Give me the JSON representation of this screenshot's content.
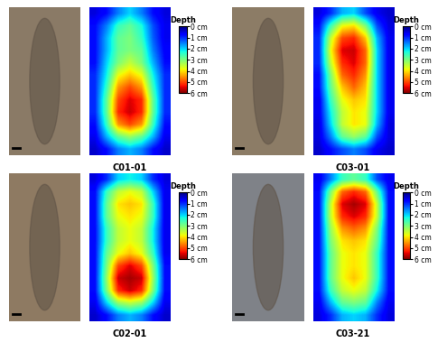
{
  "chart_data": [
    {
      "type": "heatmap",
      "title": "C01-01",
      "cells": [
        [
          0.5,
          0.8,
          1.5,
          2.0,
          1.5,
          0.8,
          0.5
        ],
        [
          0.8,
          1.5,
          2.5,
          2.8,
          2.3,
          1.2,
          0.6
        ],
        [
          0.8,
          1.8,
          2.8,
          3.0,
          2.5,
          1.3,
          0.6
        ],
        [
          0.8,
          1.8,
          2.8,
          3.0,
          2.8,
          1.5,
          0.7
        ],
        [
          0.8,
          2.0,
          3.0,
          3.5,
          3.0,
          1.8,
          0.8
        ],
        [
          1.0,
          2.2,
          3.8,
          4.2,
          3.8,
          2.2,
          1.0
        ],
        [
          1.0,
          2.5,
          4.5,
          5.0,
          4.5,
          2.5,
          1.0
        ],
        [
          1.0,
          2.8,
          5.0,
          5.5,
          5.2,
          2.8,
          1.0
        ],
        [
          1.0,
          2.8,
          5.2,
          5.6,
          5.2,
          2.8,
          1.0
        ],
        [
          0.8,
          2.5,
          4.5,
          5.0,
          4.5,
          2.5,
          0.8
        ],
        [
          0.6,
          1.8,
          2.8,
          3.2,
          2.8,
          1.8,
          0.6
        ],
        [
          0.4,
          0.8,
          1.5,
          1.8,
          1.5,
          0.8,
          0.4
        ]
      ],
      "colorbar": {
        "title": "Depth",
        "range": [
          0,
          6
        ],
        "ticks": [
          {
            "value": 0,
            "label": "0 cm"
          },
          {
            "value": 1,
            "label": "1 cm"
          },
          {
            "value": 2,
            "label": "2 cm"
          },
          {
            "value": 3,
            "label": "3 cm"
          },
          {
            "value": 4,
            "label": "4 cm"
          },
          {
            "value": 5,
            "label": "5 cm"
          },
          {
            "value": 6,
            "label": "6 cm"
          }
        ]
      }
    },
    {
      "type": "heatmap",
      "title": "C03-01",
      "cells": [
        [
          0.5,
          1.0,
          1.8,
          2.0,
          1.2,
          0.6,
          0.4
        ],
        [
          0.8,
          2.5,
          3.8,
          4.0,
          3.0,
          1.2,
          0.5
        ],
        [
          1.0,
          3.5,
          5.0,
          5.2,
          4.2,
          1.8,
          0.6
        ],
        [
          1.0,
          3.8,
          5.5,
          5.6,
          4.8,
          2.0,
          0.6
        ],
        [
          1.0,
          3.5,
          5.2,
          5.5,
          4.8,
          2.0,
          0.6
        ],
        [
          0.8,
          3.0,
          4.8,
          5.2,
          4.5,
          2.0,
          0.6
        ],
        [
          0.8,
          2.8,
          4.2,
          4.8,
          4.2,
          2.0,
          0.6
        ],
        [
          0.6,
          2.5,
          3.8,
          4.2,
          4.0,
          2.0,
          0.6
        ],
        [
          0.6,
          2.2,
          3.5,
          4.0,
          3.8,
          2.0,
          0.6
        ],
        [
          0.5,
          2.0,
          3.5,
          4.0,
          3.8,
          1.8,
          0.5
        ],
        [
          0.5,
          1.5,
          2.8,
          3.2,
          2.8,
          1.2,
          0.5
        ],
        [
          0.4,
          0.8,
          1.2,
          1.5,
          1.2,
          0.6,
          0.4
        ]
      ],
      "colorbar": {
        "title": "Depth",
        "range": [
          0,
          6
        ],
        "ticks": [
          {
            "value": 0,
            "label": "0 cm"
          },
          {
            "value": 1,
            "label": "1 cm"
          },
          {
            "value": 2,
            "label": "2 cm"
          },
          {
            "value": 3,
            "label": "3 cm"
          },
          {
            "value": 4,
            "label": "4 cm"
          },
          {
            "value": 5,
            "label": "5 cm"
          },
          {
            "value": 6,
            "label": "6 cm"
          }
        ]
      }
    },
    {
      "type": "heatmap",
      "title": "C02-01",
      "cells": [
        [
          0.5,
          1.0,
          2.0,
          2.2,
          2.0,
          1.0,
          0.5
        ],
        [
          0.8,
          2.5,
          3.5,
          3.8,
          3.5,
          2.0,
          0.6
        ],
        [
          0.8,
          2.8,
          4.0,
          4.2,
          4.0,
          2.5,
          0.6
        ],
        [
          0.8,
          2.8,
          3.8,
          4.0,
          3.8,
          2.5,
          0.6
        ],
        [
          0.8,
          2.5,
          3.5,
          3.8,
          3.5,
          2.2,
          0.6
        ],
        [
          0.8,
          2.5,
          3.5,
          3.8,
          3.5,
          2.2,
          0.6
        ],
        [
          0.8,
          2.8,
          3.8,
          4.2,
          3.8,
          2.5,
          0.6
        ],
        [
          0.8,
          3.0,
          5.0,
          5.5,
          5.0,
          3.0,
          0.8
        ],
        [
          0.8,
          3.2,
          5.6,
          5.8,
          5.6,
          3.2,
          0.8
        ],
        [
          0.8,
          3.0,
          5.2,
          5.6,
          5.2,
          3.0,
          0.8
        ],
        [
          0.6,
          2.0,
          3.2,
          3.5,
          3.2,
          2.0,
          0.6
        ],
        [
          0.4,
          0.8,
          1.5,
          1.8,
          1.5,
          0.8,
          0.4
        ]
      ],
      "colorbar": {
        "title": "Depth",
        "range": [
          0,
          6
        ],
        "ticks": [
          {
            "value": 0,
            "label": "0 cm"
          },
          {
            "value": 1,
            "label": "1 cm"
          },
          {
            "value": 2,
            "label": "2 cm"
          },
          {
            "value": 3,
            "label": "3 cm"
          },
          {
            "value": 4,
            "label": "4 cm"
          },
          {
            "value": 5,
            "label": "5 cm"
          },
          {
            "value": 6,
            "label": "6 cm"
          }
        ]
      }
    },
    {
      "type": "heatmap",
      "title": "C03-21",
      "cells": [
        [
          0.6,
          1.5,
          2.5,
          2.8,
          2.5,
          1.2,
          0.6
        ],
        [
          0.8,
          3.0,
          4.8,
          5.2,
          4.8,
          2.8,
          0.8
        ],
        [
          0.8,
          3.5,
          5.5,
          5.8,
          5.5,
          3.5,
          0.8
        ],
        [
          0.8,
          3.5,
          5.2,
          5.5,
          5.2,
          3.5,
          0.8
        ],
        [
          0.8,
          3.2,
          4.5,
          4.8,
          4.5,
          3.0,
          0.8
        ],
        [
          0.8,
          3.0,
          4.0,
          4.2,
          4.0,
          2.8,
          0.8
        ],
        [
          0.8,
          2.8,
          3.8,
          4.0,
          3.8,
          2.5,
          0.8
        ],
        [
          0.8,
          2.8,
          3.8,
          4.0,
          3.8,
          2.5,
          0.8
        ],
        [
          0.8,
          2.8,
          3.8,
          4.2,
          3.8,
          2.5,
          0.8
        ],
        [
          0.8,
          2.5,
          3.5,
          3.8,
          3.5,
          2.2,
          0.8
        ],
        [
          0.6,
          1.8,
          2.8,
          3.0,
          2.8,
          1.5,
          0.6
        ],
        [
          0.5,
          1.0,
          1.8,
          2.0,
          1.8,
          1.0,
          0.5
        ]
      ],
      "colorbar": {
        "title": "Depth",
        "range": [
          0,
          6
        ],
        "ticks": [
          {
            "value": 0,
            "label": "0 cm"
          },
          {
            "value": 1,
            "label": "1 cm"
          },
          {
            "value": 2,
            "label": "2 cm"
          },
          {
            "value": 3,
            "label": "3 cm"
          },
          {
            "value": 4,
            "label": "4 cm"
          },
          {
            "value": 5,
            "label": "5 cm"
          },
          {
            "value": 6,
            "label": "6 cm"
          }
        ]
      }
    }
  ]
}
